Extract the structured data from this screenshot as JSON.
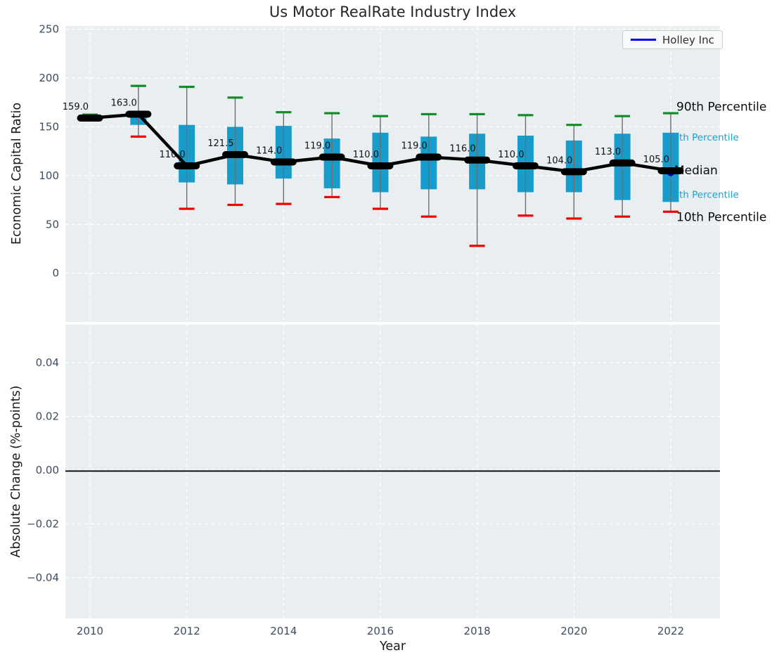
{
  "title": "Us Motor RealRate Industry Index",
  "legend": {
    "label": "Holley Inc",
    "line_color": "#0000ee"
  },
  "colors": {
    "plot_bg": "#e9eef0",
    "grid": "#ffffff",
    "box": "#189ccc",
    "whisker": "#6e6e6e",
    "cap_high": "#128c28",
    "cap_low": "#ee0000",
    "median": "#000000",
    "tick_text": "#3d4d5f",
    "value_label": "#111111",
    "annotation_black": "#0d0d0d",
    "annotation_cyan": "#189fd4",
    "highlight_dot": "#0000dd",
    "zero_line": "#000000"
  },
  "annotations": [
    {
      "name": "90th-percentile-label",
      "text": "90th Percentile",
      "color": "#0d0d0d",
      "size": 17,
      "x": 962,
      "value": 170
    },
    {
      "name": "75th-percentile-label",
      "text": "th Percentile",
      "color": "#189fd4",
      "size": 13.5,
      "x": 966,
      "value": 139
    },
    {
      "name": "median-label",
      "text": "Median",
      "color": "#0d0d0d",
      "size": 17,
      "x": 959,
      "value": 105
    },
    {
      "name": "25th-percentile-label",
      "text": "th Percentile",
      "color": "#189fd4",
      "size": 13.5,
      "x": 966,
      "value": 80
    },
    {
      "name": "10th-percentile-label",
      "text": "10th Percentile",
      "color": "#0d0d0d",
      "size": 17,
      "x": 962,
      "value": 57
    }
  ],
  "chart_data": [
    {
      "type": "box",
      "title": "Us Motor RealRate Industry Index",
      "ylabel": "Economic Capital Ratio",
      "ylim": [
        -50,
        253
      ],
      "yticks": [
        250,
        200,
        150,
        100,
        50,
        0
      ],
      "ytick_labels": [
        "250",
        "200",
        "150",
        "100",
        "50",
        "0"
      ],
      "x": [
        2010,
        2011,
        2012,
        2013,
        2014,
        2015,
        2016,
        2017,
        2018,
        2019,
        2020,
        2021,
        2022
      ],
      "series": [
        {
          "name": "10th Percentile",
          "values": [
            157,
            140,
            66,
            70,
            71,
            78,
            66,
            58,
            28,
            59,
            56,
            58,
            63
          ]
        },
        {
          "name": "25th Percentile",
          "values": [
            158,
            152,
            93,
            91,
            97,
            87,
            83,
            86,
            86,
            83,
            83,
            75,
            73
          ]
        },
        {
          "name": "Median",
          "values": [
            159,
            163,
            110,
            121.5,
            114,
            119,
            110,
            119,
            116,
            110,
            104,
            113,
            105
          ]
        },
        {
          "name": "75th Percentile",
          "values": [
            160.5,
            165,
            152,
            150,
            151,
            138,
            144,
            140,
            143,
            141,
            136,
            143,
            144
          ]
        },
        {
          "name": "90th Percentile",
          "values": [
            162.5,
            192,
            191,
            180,
            165,
            164,
            161,
            163,
            163,
            162,
            152,
            161,
            164
          ]
        }
      ],
      "median_labels": [
        "159.0",
        "163.0",
        "110.0",
        "121.5",
        "114.0",
        "119.0",
        "110.0",
        "119.0",
        "116.0",
        "110.0",
        "104.0",
        "113.0",
        "105.0"
      ],
      "highlight_point": {
        "name": "Holley Inc",
        "x": 2022,
        "value": 103
      },
      "legend_entry": "Holley Inc",
      "grid": true,
      "legend_position": "upper right"
    },
    {
      "type": "line",
      "ylabel": "Absolute Change (%-points)",
      "xlabel": "Year",
      "yticks": [
        0.04,
        0.02,
        0,
        -0.02,
        -0.04
      ],
      "ytick_labels": [
        "0.04",
        "0.02",
        "0.00",
        "−0.02",
        "−0.04"
      ],
      "xticks": [
        2010,
        2012,
        2014,
        2016,
        2018,
        2020,
        2022
      ],
      "xtick_labels": [
        "2010",
        "2012",
        "2014",
        "2016",
        "2018",
        "2020",
        "2022"
      ],
      "zero_line": 0,
      "series": [],
      "grid": true
    }
  ]
}
